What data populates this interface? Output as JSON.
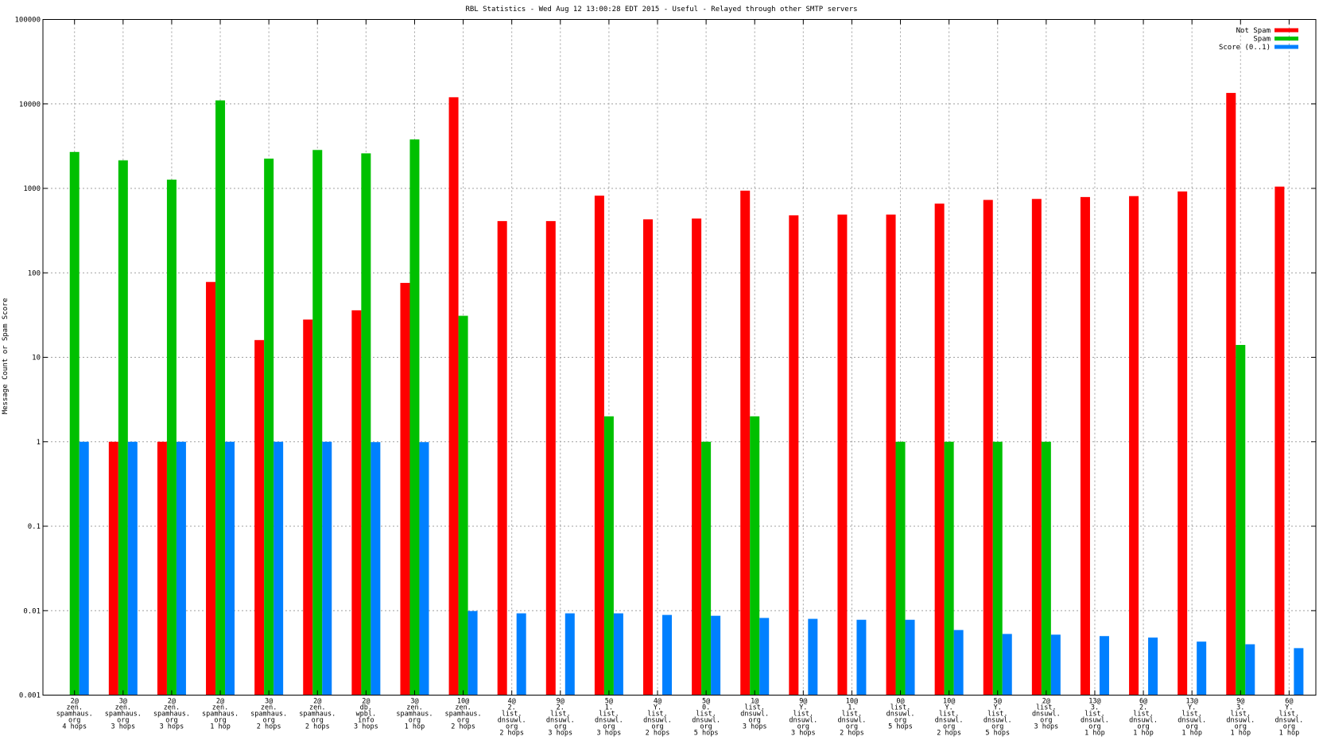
{
  "chart_data": {
    "type": "bar",
    "title": "RBL Statistics - Wed Aug 12 13:00:28 EDT 2015 - Useful - Relayed through other SMTP servers",
    "xlabel": "",
    "ylabel": "Message Count or Spam Score",
    "yscale": "log",
    "ylim": [
      0.001,
      100000
    ],
    "yticks": [
      "0.001",
      "0.01",
      "0.1",
      "1",
      "10",
      "100",
      "1000",
      "10000",
      "100000"
    ],
    "grid": true,
    "legend_position": "top-right",
    "categories": [
      [
        "2@",
        "zen.",
        "spamhaus.",
        "org",
        "4 hops"
      ],
      [
        "3@",
        "zen.",
        "spamhaus.",
        "org",
        "3 hops"
      ],
      [
        "2@",
        "zen.",
        "spamhaus.",
        "org",
        "3 hops"
      ],
      [
        "2@",
        "zen.",
        "spamhaus.",
        "org",
        "1 hop"
      ],
      [
        "3@",
        "zen.",
        "spamhaus.",
        "org",
        "2 hops"
      ],
      [
        "2@",
        "zen.",
        "spamhaus.",
        "org",
        "2 hops"
      ],
      [
        "2@",
        "db.",
        "wpbl.",
        "info",
        "3 hops"
      ],
      [
        "3@",
        "zen.",
        "spamhaus.",
        "org",
        "1 hop"
      ],
      [
        "10@",
        "zen.",
        "spamhaus.",
        "org",
        "2 hops"
      ],
      [
        "4@",
        "2.",
        "list.",
        "dnsuwl.",
        "org",
        "2 hops"
      ],
      [
        "9@",
        "2.",
        "list.",
        "dnsuwl.",
        "org",
        "3 hops"
      ],
      [
        "5@",
        "1.",
        "list.",
        "dnsuwl.",
        "org",
        "3 hops"
      ],
      [
        "4@",
        "Y.",
        "list.",
        "dnsuwl.",
        "org",
        "2 hops"
      ],
      [
        "5@",
        "0.",
        "list.",
        "dnsuwl.",
        "org",
        "5 hops"
      ],
      [
        "1@",
        "list.",
        "dnsuwl.",
        "org",
        "3 hops"
      ],
      [
        "9@",
        "Y.",
        "list.",
        "dnsuwl.",
        "org",
        "3 hops"
      ],
      [
        "10@",
        "1.",
        "list.",
        "dnsuwl.",
        "org",
        "2 hops"
      ],
      [
        "0@",
        "list.",
        "dnsuwl.",
        "org",
        "5 hops"
      ],
      [
        "10@",
        "Y.",
        "list.",
        "dnsuwl.",
        "org",
        "2 hops"
      ],
      [
        "5@",
        "Y.",
        "list.",
        "dnsuwl.",
        "org",
        "5 hops"
      ],
      [
        "2@",
        "list.",
        "dnsuwl.",
        "org",
        "3 hops"
      ],
      [
        "13@",
        "3.",
        "list.",
        "dnsuwl.",
        "org",
        "1 hop"
      ],
      [
        "6@",
        "2.",
        "list.",
        "dnsuwl.",
        "org",
        "1 hop"
      ],
      [
        "13@",
        "Y.",
        "list.",
        "dnsuwl.",
        "org",
        "1 hop"
      ],
      [
        "9@",
        "3.",
        "list.",
        "dnsuwl.",
        "org",
        "1 hop"
      ],
      [
        "6@",
        "Y.",
        "list.",
        "dnsuwl.",
        "org",
        "1 hop"
      ]
    ],
    "series": [
      {
        "name": "Not Spam",
        "color": "#ff0000",
        "values": [
          null,
          1,
          1,
          78,
          16,
          28,
          36,
          76,
          12000,
          410,
          410,
          820,
          430,
          440,
          940,
          480,
          490,
          490,
          660,
          730,
          750,
          790,
          810,
          920,
          13500,
          1050
        ]
      },
      {
        "name": "Spam",
        "color": "#00c000",
        "values": [
          2700,
          2150,
          1270,
          11000,
          2250,
          2850,
          2600,
          3800,
          31,
          null,
          null,
          2,
          null,
          1,
          2,
          null,
          null,
          1,
          1,
          1,
          1,
          null,
          null,
          null,
          14,
          null
        ]
      },
      {
        "name": "Score (0..1)",
        "color": "#0080ff",
        "values": [
          1,
          1,
          1,
          1,
          1,
          1,
          0.99,
          0.99,
          0.0099,
          0.0093,
          0.0093,
          0.0093,
          0.0089,
          0.0087,
          0.0082,
          0.008,
          0.0078,
          0.0078,
          0.0059,
          0.0053,
          0.0052,
          0.005,
          0.0048,
          0.0043,
          0.004,
          0.0036
        ]
      }
    ]
  }
}
